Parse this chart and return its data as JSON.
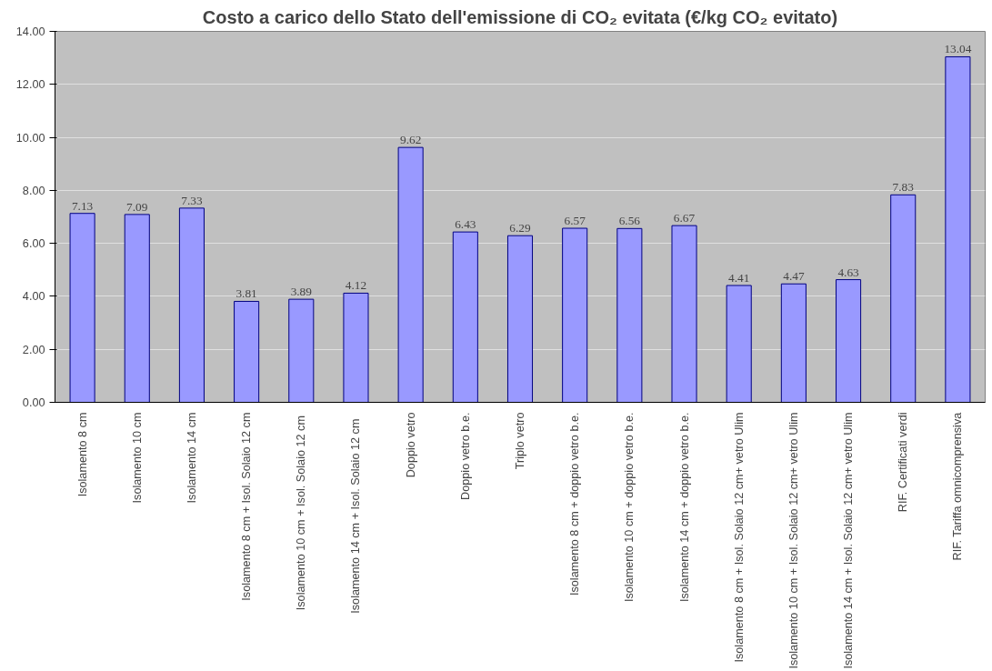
{
  "chart_data": {
    "type": "bar",
    "title": "Costo a carico dello Stato dell'emissione di CO₂ evitata (€/kg CO₂ evitato)",
    "categories": [
      "Isolamento 8 cm",
      "Isolamento 10 cm",
      "Isolamento 14 cm",
      "Isolamento 8 cm + Isol. Solaio 12 cm",
      "Isolamento 10 cm +  Isol. Solaio 12 cm",
      "Isolamento 14 cm +   Isol. Solaio 12 cm",
      "Doppio vetro",
      "Doppio vetro b.e.",
      "Triplo vetro",
      "Isolamento 8 cm + doppio vetro b.e.",
      "Isolamento 10 cm + doppio vetro b.e.",
      "Isolamento 14 cm + doppio vetro b.e.",
      "Isolamento 8 cm + Isol. Solaio 12 cm+ vetro Ulim",
      "Isolamento 10 cm + Isol. Solaio 12 cm+ vetro Ulim",
      "Isolamento 14 cm + Isol. Solaio 12 cm+ vetro Ulim",
      "RIF. Certificati verdi",
      "RIF. Tariffa omnicomprensiva"
    ],
    "values": [
      7.13,
      7.09,
      7.33,
      3.81,
      3.89,
      4.12,
      9.62,
      6.43,
      6.29,
      6.57,
      6.56,
      6.67,
      4.41,
      4.47,
      4.63,
      7.83,
      13.04
    ],
    "color": "#9999ff",
    "data_labels": true,
    "grid": "y",
    "ylim": [
      0,
      14
    ],
    "yticks": [
      {
        "value": 0,
        "label": "0.00"
      },
      {
        "value": 2,
        "label": "2.00"
      },
      {
        "value": 4,
        "label": "4.00"
      },
      {
        "value": 6,
        "label": "6.00"
      },
      {
        "value": 8,
        "label": "8.00"
      },
      {
        "value": 10,
        "label": "10.00"
      },
      {
        "value": 12,
        "label": "12.00"
      },
      {
        "value": 14,
        "label": "14.00"
      }
    ]
  }
}
